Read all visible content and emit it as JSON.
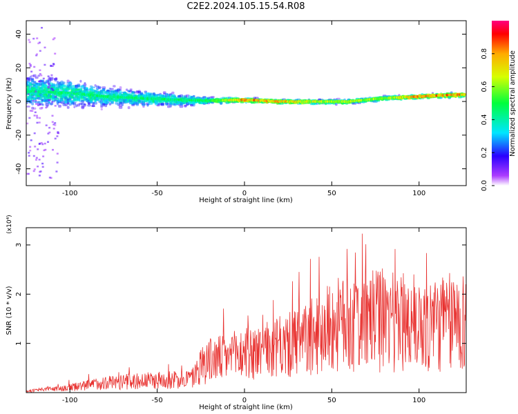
{
  "page": {
    "title": "C2E2.2024.105.15.54.R08"
  },
  "colors": {
    "snr_line": "#e8302e",
    "axes": "#000000",
    "colormap": [
      "#ffffff",
      "#ac3cff",
      "#2a00ff",
      "#00e6ff",
      "#00ff3c",
      "#d7ff00",
      "#ffaa00",
      "#ff0000",
      "#ff007f"
    ]
  },
  "chart_data": [
    {
      "type": "heatmap",
      "title": "C2E2.2024.105.15.54.R08",
      "xlabel": "Height of straight line (km)",
      "ylabel": "Frequency (Hz)",
      "xlim": [
        -125,
        127
      ],
      "ylim": [
        -50,
        48
      ],
      "x_ticks": [
        -100,
        -50,
        0,
        50,
        100
      ],
      "y_ticks": [
        -40,
        -20,
        0,
        20,
        40
      ],
      "colorbar": {
        "label": "Normalized spectral amplitude",
        "range": [
          0,
          1
        ],
        "ticks": [
          "0.0",
          "0.2",
          "0.4",
          "0.6",
          "0.8"
        ]
      },
      "ridge": {
        "x": [
          -120,
          -100,
          -80,
          -60,
          -40,
          -20,
          0,
          20,
          40,
          60,
          80,
          100,
          120,
          127
        ],
        "center_freq": [
          6,
          5,
          3,
          2,
          1,
          0.5,
          1,
          0,
          0,
          0,
          2,
          3,
          4,
          4
        ],
        "spread": [
          14,
          12,
          9,
          7,
          6,
          3,
          2,
          2,
          2,
          2,
          2,
          2,
          2,
          2
        ],
        "peak_amplitude": [
          0.5,
          0.5,
          0.5,
          0.5,
          0.5,
          0.55,
          0.9,
          0.85,
          0.7,
          0.7,
          0.65,
          0.9,
          0.9,
          0.85
        ]
      }
    },
    {
      "type": "line",
      "xlabel": "Height of straight line (km)",
      "ylabel": "SNR (10 * v/v)",
      "y_multiplier": "(x10⁴)",
      "xlim": [
        -125,
        127
      ],
      "ylim": [
        0,
        3.35
      ],
      "x_ticks": [
        -100,
        -50,
        0,
        50,
        100
      ],
      "y_ticks": [
        1,
        2,
        3
      ],
      "series": [
        {
          "envelope_x": [
            -125,
            -100,
            -80,
            -60,
            -40,
            -30,
            -23,
            -10,
            0,
            10,
            20,
            30,
            40,
            50,
            60,
            70,
            80,
            90,
            100,
            110,
            120,
            127
          ],
          "envelope_y": [
            0.05,
            0.18,
            0.35,
            0.4,
            0.45,
            0.5,
            1.1,
            1.2,
            1.35,
            1.4,
            1.55,
            1.7,
            1.95,
            2.3,
            2.4,
            2.45,
            2.55,
            2.5,
            2.4,
            2.4,
            2.45,
            2.5
          ]
        }
      ]
    }
  ]
}
